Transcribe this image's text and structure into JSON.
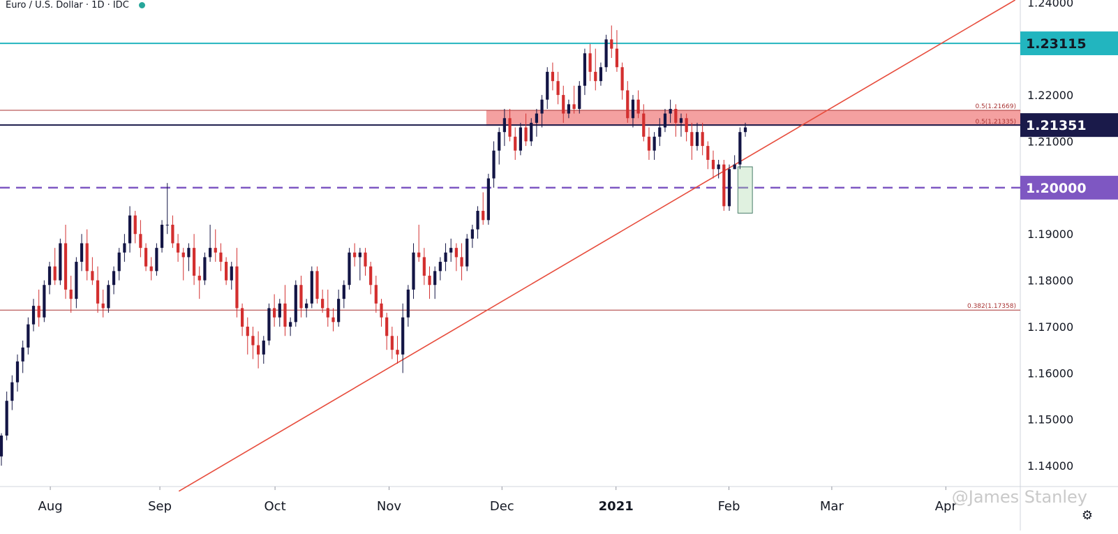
{
  "header": {
    "symbol": "Euro / U.S. Dollar · 1D · IDC",
    "status_color": "#26a69a"
  },
  "watermark": "@James Stanley",
  "settings_icon": "gear-icon",
  "chart_data": {
    "type": "candlestick",
    "ylim": [
      1.1355,
      1.2405
    ],
    "y_ticks": [
      "1.14000",
      "1.15000",
      "1.16000",
      "1.17000",
      "1.18000",
      "1.19000",
      "1.20000",
      "1.21000",
      "1.22000",
      "1.23000",
      "1.24000"
    ],
    "x_ticks": [
      {
        "label": "Aug",
        "t": 0.045
      },
      {
        "label": "Sep",
        "t": 0.143
      },
      {
        "label": "Oct",
        "t": 0.246
      },
      {
        "label": "Nov",
        "t": 0.348
      },
      {
        "label": "Dec",
        "t": 0.449
      },
      {
        "label": "2021",
        "t": 0.551,
        "bold": true
      },
      {
        "label": "Feb",
        "t": 0.652
      },
      {
        "label": "Mar",
        "t": 0.744
      },
      {
        "label": "Apr",
        "t": 0.846
      }
    ],
    "price_labels": [
      {
        "value": 1.23115,
        "text": "1.23115",
        "bg": "#22b5bf",
        "fg": "#131722"
      },
      {
        "value": 1.21351,
        "text": "1.21351",
        "bg": "#1a1a4a",
        "fg": "#ffffff"
      },
      {
        "value": 1.2,
        "text": "1.20000",
        "bg": "#7e57c2",
        "fg": "#ffffff"
      }
    ],
    "lines": [
      {
        "name": "resistance-1.23115",
        "value": 1.23115,
        "color": "#22b5bf",
        "style": "solid"
      },
      {
        "name": "level-1.2135",
        "value": 1.21351,
        "color": "#1a1a4a",
        "style": "solid"
      },
      {
        "name": "psych-1.20",
        "value": 1.2,
        "color": "#7e57c2",
        "style": "dashed"
      },
      {
        "name": "fib-0.5-1.21669",
        "value": 1.21669,
        "color": "#a83232",
        "style": "thin"
      },
      {
        "name": "fib-0.382-1.17358",
        "value": 1.17358,
        "color": "#a83232",
        "style": "thin"
      }
    ],
    "fib_labels": [
      {
        "value": 1.21669,
        "text": "0.5(1.21669)"
      },
      {
        "value": 1.21335,
        "text": "0.5(1.21335)"
      },
      {
        "value": 1.17358,
        "text": "0.382(1.17358)"
      }
    ],
    "zone": {
      "low": 1.21335,
      "high": 1.21669,
      "t_start": 0.435,
      "color": "#f08080"
    },
    "trendline": {
      "t1": 0.16,
      "p1": 1.1345,
      "t2": 0.908,
      "p2": 1.2405,
      "color": "#e74c3c"
    },
    "highlight_box": {
      "t1": 0.66,
      "t2": 0.673,
      "low": 1.1945,
      "high": 1.2045
    },
    "candles": [
      [
        1.142,
        1.147,
        1.14,
        1.1465
      ],
      [
        1.1465,
        1.156,
        1.1455,
        1.154
      ],
      [
        1.154,
        1.1595,
        1.152,
        1.158
      ],
      [
        1.158,
        1.164,
        1.156,
        1.1625
      ],
      [
        1.1625,
        1.167,
        1.16,
        1.1655
      ],
      [
        1.1655,
        1.172,
        1.164,
        1.1705
      ],
      [
        1.1705,
        1.176,
        1.169,
        1.1745
      ],
      [
        1.1745,
        1.178,
        1.17,
        1.172
      ],
      [
        1.172,
        1.18,
        1.171,
        1.179
      ],
      [
        1.179,
        1.184,
        1.177,
        1.183
      ],
      [
        1.183,
        1.187,
        1.179,
        1.18
      ],
      [
        1.18,
        1.189,
        1.179,
        1.188
      ],
      [
        1.188,
        1.192,
        1.176,
        1.178
      ],
      [
        1.178,
        1.181,
        1.173,
        1.176
      ],
      [
        1.176,
        1.185,
        1.174,
        1.184
      ],
      [
        1.184,
        1.19,
        1.182,
        1.188
      ],
      [
        1.188,
        1.191,
        1.18,
        1.182
      ],
      [
        1.182,
        1.185,
        1.179,
        1.18
      ],
      [
        1.18,
        1.183,
        1.173,
        1.175
      ],
      [
        1.175,
        1.178,
        1.172,
        1.174
      ],
      [
        1.174,
        1.18,
        1.173,
        1.179
      ],
      [
        1.179,
        1.183,
        1.177,
        1.182
      ],
      [
        1.182,
        1.187,
        1.18,
        1.186
      ],
      [
        1.186,
        1.19,
        1.184,
        1.188
      ],
      [
        1.188,
        1.196,
        1.186,
        1.194
      ],
      [
        1.194,
        1.195,
        1.188,
        1.19
      ],
      [
        1.19,
        1.193,
        1.185,
        1.187
      ],
      [
        1.187,
        1.188,
        1.182,
        1.183
      ],
      [
        1.183,
        1.185,
        1.18,
        1.182
      ],
      [
        1.182,
        1.188,
        1.181,
        1.187
      ],
      [
        1.187,
        1.193,
        1.186,
        1.192
      ],
      [
        1.192,
        1.201,
        1.19,
        1.192
      ],
      [
        1.192,
        1.194,
        1.187,
        1.188
      ],
      [
        1.188,
        1.19,
        1.184,
        1.186
      ],
      [
        1.186,
        1.187,
        1.18,
        1.185
      ],
      [
        1.185,
        1.188,
        1.182,
        1.187
      ],
      [
        1.187,
        1.19,
        1.179,
        1.181
      ],
      [
        1.181,
        1.183,
        1.176,
        1.18
      ],
      [
        1.18,
        1.186,
        1.179,
        1.185
      ],
      [
        1.185,
        1.192,
        1.184,
        1.187
      ],
      [
        1.187,
        1.191,
        1.184,
        1.186
      ],
      [
        1.186,
        1.188,
        1.182,
        1.184
      ],
      [
        1.184,
        1.185,
        1.179,
        1.18
      ],
      [
        1.18,
        1.184,
        1.178,
        1.183
      ],
      [
        1.183,
        1.187,
        1.172,
        1.174
      ],
      [
        1.174,
        1.175,
        1.168,
        1.17
      ],
      [
        1.17,
        1.172,
        1.164,
        1.168
      ],
      [
        1.168,
        1.17,
        1.163,
        1.166
      ],
      [
        1.166,
        1.169,
        1.161,
        1.164
      ],
      [
        1.164,
        1.168,
        1.162,
        1.167
      ],
      [
        1.167,
        1.175,
        1.166,
        1.174
      ],
      [
        1.174,
        1.177,
        1.17,
        1.172
      ],
      [
        1.172,
        1.176,
        1.17,
        1.175
      ],
      [
        1.175,
        1.179,
        1.168,
        1.17
      ],
      [
        1.17,
        1.172,
        1.168,
        1.171
      ],
      [
        1.171,
        1.18,
        1.17,
        1.179
      ],
      [
        1.179,
        1.181,
        1.172,
        1.174
      ],
      [
        1.174,
        1.176,
        1.172,
        1.175
      ],
      [
        1.175,
        1.183,
        1.174,
        1.182
      ],
      [
        1.182,
        1.183,
        1.175,
        1.176
      ],
      [
        1.176,
        1.178,
        1.173,
        1.174
      ],
      [
        1.174,
        1.178,
        1.17,
        1.172
      ],
      [
        1.172,
        1.174,
        1.169,
        1.171
      ],
      [
        1.171,
        1.178,
        1.17,
        1.176
      ],
      [
        1.176,
        1.18,
        1.174,
        1.179
      ],
      [
        1.179,
        1.187,
        1.178,
        1.186
      ],
      [
        1.186,
        1.188,
        1.183,
        1.185
      ],
      [
        1.185,
        1.187,
        1.18,
        1.186
      ],
      [
        1.186,
        1.187,
        1.181,
        1.183
      ],
      [
        1.183,
        1.184,
        1.177,
        1.179
      ],
      [
        1.179,
        1.181,
        1.173,
        1.175
      ],
      [
        1.175,
        1.176,
        1.17,
        1.172
      ],
      [
        1.172,
        1.173,
        1.165,
        1.168
      ],
      [
        1.168,
        1.17,
        1.163,
        1.165
      ],
      [
        1.165,
        1.168,
        1.162,
        1.164
      ],
      [
        1.164,
        1.175,
        1.16,
        1.172
      ],
      [
        1.172,
        1.179,
        1.17,
        1.178
      ],
      [
        1.178,
        1.188,
        1.176,
        1.186
      ],
      [
        1.186,
        1.192,
        1.184,
        1.185
      ],
      [
        1.185,
        1.187,
        1.179,
        1.181
      ],
      [
        1.181,
        1.183,
        1.176,
        1.179
      ],
      [
        1.179,
        1.183,
        1.176,
        1.182
      ],
      [
        1.182,
        1.185,
        1.18,
        1.184
      ],
      [
        1.184,
        1.188,
        1.182,
        1.186
      ],
      [
        1.186,
        1.189,
        1.184,
        1.187
      ],
      [
        1.187,
        1.188,
        1.182,
        1.185
      ],
      [
        1.185,
        1.188,
        1.18,
        1.183
      ],
      [
        1.183,
        1.19,
        1.182,
        1.189
      ],
      [
        1.189,
        1.192,
        1.187,
        1.191
      ],
      [
        1.191,
        1.196,
        1.189,
        1.195
      ],
      [
        1.195,
        1.199,
        1.192,
        1.193
      ],
      [
        1.193,
        1.203,
        1.192,
        1.202
      ],
      [
        1.202,
        1.21,
        1.2,
        1.208
      ],
      [
        1.208,
        1.213,
        1.205,
        1.212
      ],
      [
        1.212,
        1.217,
        1.209,
        1.215
      ],
      [
        1.215,
        1.217,
        1.21,
        1.211
      ],
      [
        1.211,
        1.213,
        1.206,
        1.208
      ],
      [
        1.208,
        1.214,
        1.207,
        1.213
      ],
      [
        1.213,
        1.216,
        1.209,
        1.21
      ],
      [
        1.21,
        1.215,
        1.209,
        1.214
      ],
      [
        1.214,
        1.217,
        1.211,
        1.216
      ],
      [
        1.216,
        1.22,
        1.213,
        1.219
      ],
      [
        1.219,
        1.226,
        1.217,
        1.225
      ],
      [
        1.225,
        1.227,
        1.221,
        1.223
      ],
      [
        1.223,
        1.225,
        1.218,
        1.22
      ],
      [
        1.22,
        1.222,
        1.214,
        1.216
      ],
      [
        1.216,
        1.219,
        1.215,
        1.218
      ],
      [
        1.218,
        1.222,
        1.216,
        1.217
      ],
      [
        1.217,
        1.223,
        1.216,
        1.222
      ],
      [
        1.222,
        1.23,
        1.22,
        1.229
      ],
      [
        1.229,
        1.231,
        1.223,
        1.225
      ],
      [
        1.225,
        1.23,
        1.221,
        1.223
      ],
      [
        1.223,
        1.227,
        1.222,
        1.226
      ],
      [
        1.226,
        1.233,
        1.225,
        1.232
      ],
      [
        1.232,
        1.235,
        1.228,
        1.23
      ],
      [
        1.23,
        1.234,
        1.225,
        1.226
      ],
      [
        1.226,
        1.227,
        1.219,
        1.221
      ],
      [
        1.221,
        1.223,
        1.214,
        1.215
      ],
      [
        1.215,
        1.22,
        1.213,
        1.219
      ],
      [
        1.219,
        1.221,
        1.215,
        1.216
      ],
      [
        1.216,
        1.218,
        1.21,
        1.211
      ],
      [
        1.211,
        1.213,
        1.206,
        1.208
      ],
      [
        1.208,
        1.212,
        1.206,
        1.211
      ],
      [
        1.211,
        1.215,
        1.209,
        1.213
      ],
      [
        1.213,
        1.217,
        1.212,
        1.216
      ],
      [
        1.216,
        1.219,
        1.214,
        1.217
      ],
      [
        1.217,
        1.218,
        1.211,
        1.214
      ],
      [
        1.214,
        1.216,
        1.211,
        1.215
      ],
      [
        1.215,
        1.216,
        1.21,
        1.212
      ],
      [
        1.212,
        1.214,
        1.206,
        1.209
      ],
      [
        1.209,
        1.214,
        1.208,
        1.212
      ],
      [
        1.212,
        1.214,
        1.207,
        1.209
      ],
      [
        1.209,
        1.21,
        1.204,
        1.206
      ],
      [
        1.206,
        1.208,
        1.202,
        1.204
      ],
      [
        1.204,
        1.206,
        1.202,
        1.205
      ],
      [
        1.205,
        1.206,
        1.195,
        1.196
      ],
      [
        1.196,
        1.205,
        1.195,
        1.204
      ],
      [
        1.204,
        1.207,
        1.204,
        1.205
      ],
      [
        1.205,
        1.213,
        1.204,
        1.212
      ],
      [
        1.212,
        1.214,
        1.211,
        1.213
      ]
    ]
  }
}
